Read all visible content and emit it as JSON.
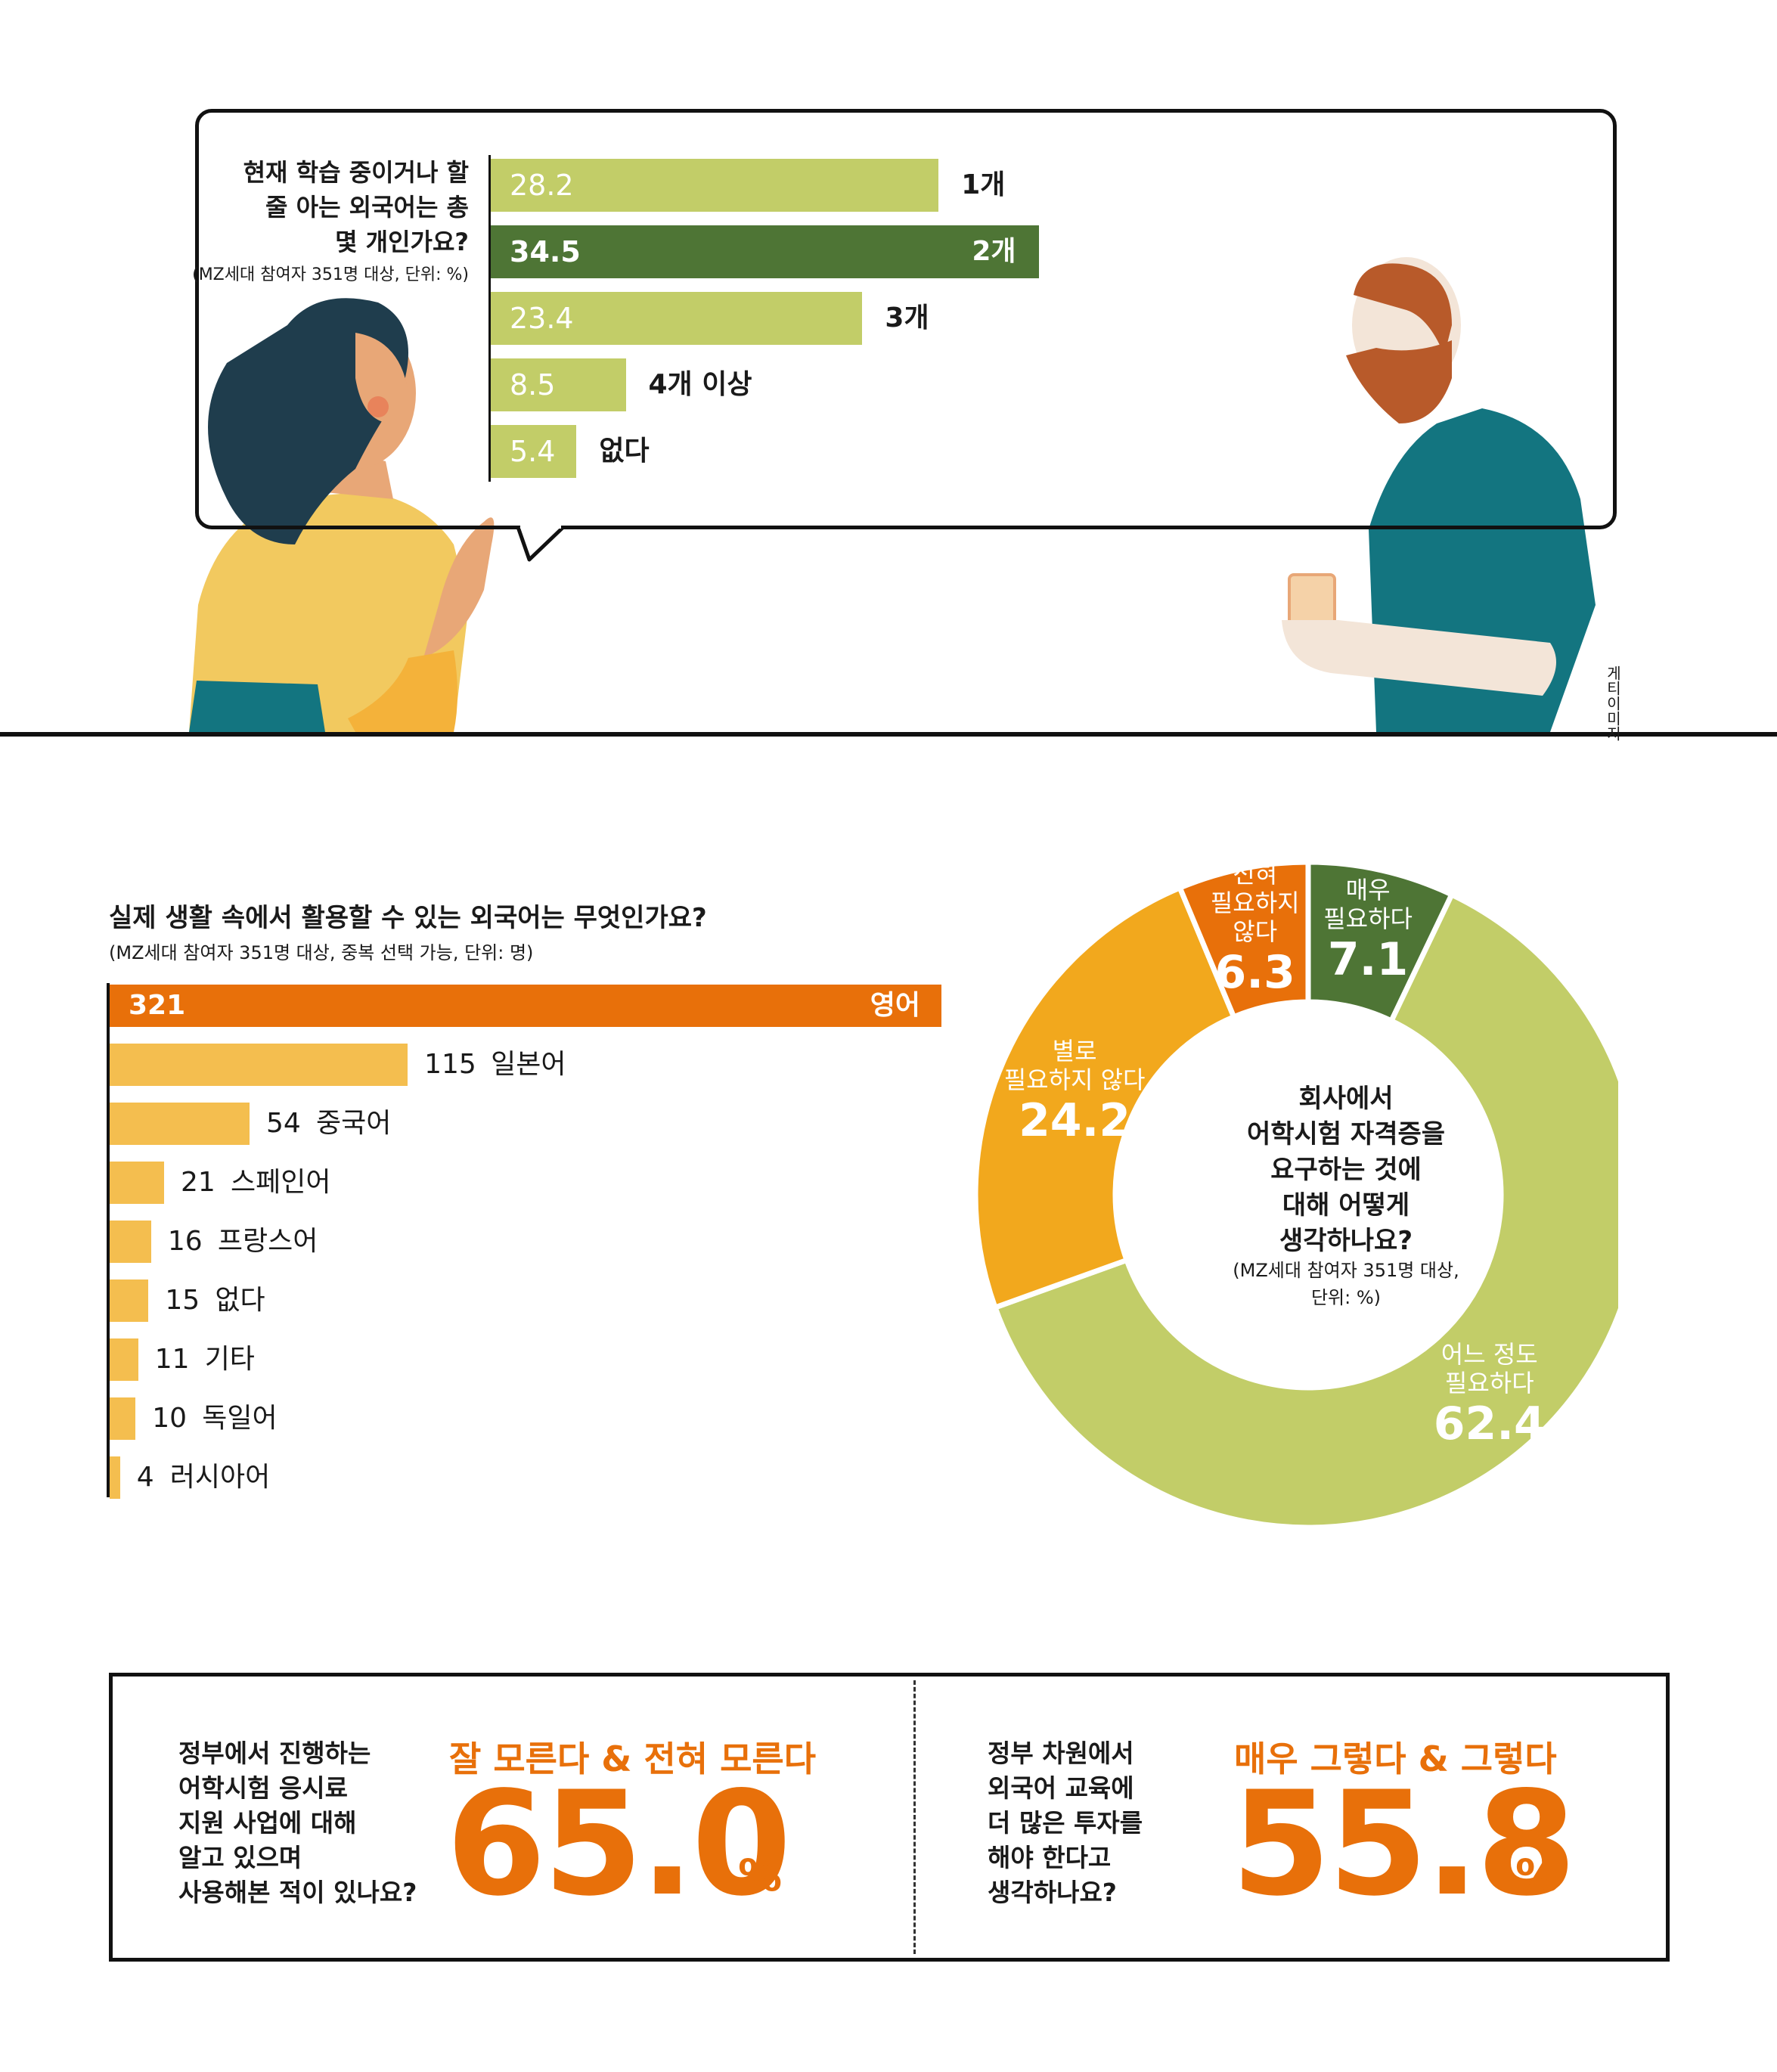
{
  "colors": {
    "light_green": "#c2cd68",
    "dark_green": "#4e7535",
    "orange": "#e8700a",
    "amber": "#f2a81d",
    "yellow": "#f4be4f",
    "teal": "#137580"
  },
  "credit": "게티이미지",
  "chart_data": [
    {
      "type": "bar",
      "orientation": "horizontal",
      "title": "현재 학습 중이거나 할 줄 아는 외국어는 총 몇 개인가요?",
      "subtitle": "(MZ세대 참여자 351명 대상, 단위: %)",
      "categories": [
        "1개",
        "2개",
        "3개",
        "4개 이상",
        "없다"
      ],
      "values": [
        28.2,
        34.5,
        23.4,
        8.5,
        5.4
      ],
      "value_labels": [
        "28.2",
        "34.5",
        "23.4",
        "8.5",
        "5.4"
      ],
      "highlight": "2개"
    },
    {
      "type": "bar",
      "orientation": "horizontal",
      "title": "실제 생활 속에서 활용할 수 있는 외국어는 무엇인가요?",
      "subtitle": "(MZ세대 참여자 351명 대상, 중복 선택 가능, 단위: 명)",
      "categories": [
        "영어",
        "일본어",
        "중국어",
        "스페인어",
        "프랑스어",
        "없다",
        "기타",
        "독일어",
        "러시아어"
      ],
      "values": [
        321,
        115,
        54,
        21,
        16,
        15,
        11,
        10,
        4
      ],
      "value_labels": [
        "321",
        "115",
        "54",
        "21",
        "16",
        "15",
        "11",
        "10",
        "4"
      ],
      "highlight": "영어"
    },
    {
      "type": "pie",
      "donut": true,
      "title_lines": [
        "회사에서",
        "어학시험 자격증을",
        "요구하는 것에",
        "대해 어떻게",
        "생각하나요?"
      ],
      "subtitle_lines": [
        "(MZ세대 참여자 351명 대상,",
        "단위: %)"
      ],
      "slices": [
        {
          "label_lines": [
            "매우",
            "필요하다"
          ],
          "value": 7.1,
          "value_label": "7.1"
        },
        {
          "label_lines": [
            "어느 정도",
            "필요하다"
          ],
          "value": 62.4,
          "value_label": "62.4"
        },
        {
          "label_lines": [
            "별로",
            "필요하지 않다"
          ],
          "value": 24.2,
          "value_label": "24.2"
        },
        {
          "label_lines": [
            "전혀",
            "필요하지",
            "않다"
          ],
          "value": 6.3,
          "value_label": "6.3"
        }
      ]
    }
  ],
  "bottom": {
    "left": {
      "question_lines": [
        "정부에서 진행하는",
        "어학시험 응시료",
        "지원 사업에 대해",
        "알고 있으며",
        "사용해본 적이 있나요?"
      ],
      "answer": "잘 모른다 & 전혀 모른다",
      "value": "65.0",
      "unit": "%"
    },
    "right": {
      "question_lines": [
        "정부 차원에서",
        "외국어 교육에",
        "더 많은 투자를",
        "해야 한다고",
        "생각하나요?"
      ],
      "answer": "매우 그렇다 & 그렇다",
      "value": "55.8",
      "unit": "%"
    }
  }
}
